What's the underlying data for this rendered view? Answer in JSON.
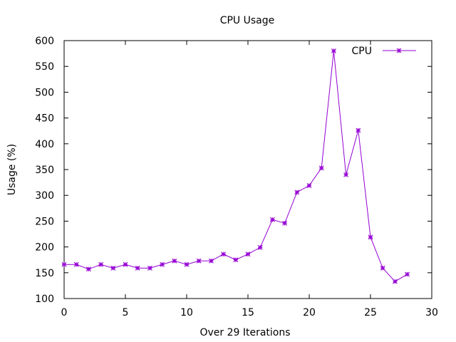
{
  "chart_data": {
    "type": "line",
    "title": "CPU Usage",
    "xlabel": "Over 29 Iterations",
    "ylabel": "Usage (%)",
    "xlim": [
      0,
      30
    ],
    "ylim": [
      100,
      600
    ],
    "xticks": [
      0,
      5,
      10,
      15,
      20,
      25,
      30
    ],
    "yticks": [
      100,
      150,
      200,
      250,
      300,
      350,
      400,
      450,
      500,
      550,
      600
    ],
    "grid": false,
    "legend_position": "top-right",
    "series": [
      {
        "name": "CPU",
        "color": "#9400d3",
        "marker": "star",
        "x": [
          0,
          1,
          2,
          3,
          4,
          5,
          6,
          7,
          8,
          9,
          10,
          11,
          12,
          13,
          14,
          15,
          16,
          17,
          18,
          19,
          20,
          21,
          22,
          23,
          24,
          25,
          26,
          27,
          28
        ],
        "y": [
          166,
          166,
          157,
          166,
          159,
          166,
          159,
          159,
          166,
          173,
          166,
          173,
          173,
          186,
          175,
          186,
          199,
          253,
          246,
          306,
          319,
          353,
          580,
          340,
          426,
          219,
          159,
          133,
          147
        ]
      }
    ]
  }
}
